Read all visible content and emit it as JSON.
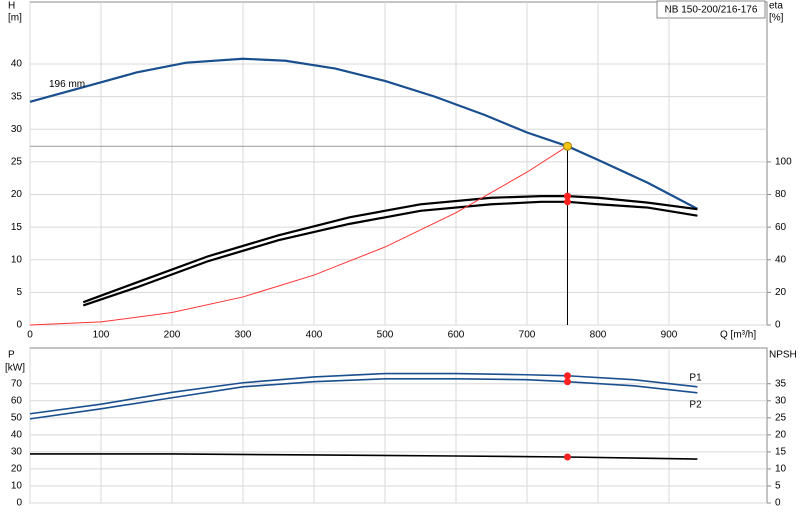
{
  "chart_data": [
    {
      "type": "line",
      "title": "NB 150-200/216-176",
      "xlabel": "Q [m³/h]",
      "ylabel": "H",
      "yunit": "[m]",
      "y2label": "eta",
      "y2unit": "[%]",
      "xlim": [
        0,
        1038
      ],
      "xticks": [
        0,
        100,
        200,
        300,
        400,
        500,
        600,
        700,
        800,
        900
      ],
      "ylim": [
        0,
        49.5
      ],
      "yticks": [
        0,
        5,
        10,
        15,
        20,
        25,
        30,
        35,
        40
      ],
      "y2lim": [
        0,
        198
      ],
      "y2ticks": [
        0,
        20,
        40,
        60,
        80,
        100
      ],
      "grid": true,
      "duty_point": {
        "x": 757,
        "y": 27.4,
        "color": "#f5c518"
      },
      "marker_color": "#ff2020",
      "series": [
        {
          "name": "196 mm",
          "color": "#1a4f8f",
          "x": [
            0,
            100,
            150,
            220,
            300,
            360,
            430,
            500,
            570,
            640,
            700,
            757,
            800,
            870,
            940
          ],
          "values": [
            34.2,
            37.2,
            38.7,
            40.2,
            40.8,
            40.5,
            39.3,
            37.4,
            35,
            32.2,
            29.5,
            27.4,
            25.3,
            21.8,
            17.8
          ]
        },
        {
          "color": "#000000",
          "axis": "y2",
          "x": [
            75,
            150,
            250,
            350,
            450,
            550,
            650,
            720,
            757,
            800,
            870,
            940
          ],
          "values": [
            14,
            26,
            42,
            55,
            66,
            74,
            78,
            79,
            79,
            78,
            75,
            71
          ]
        },
        {
          "color": "#000000",
          "axis": "y2",
          "x": [
            75,
            150,
            250,
            350,
            450,
            550,
            650,
            720,
            757,
            800,
            870,
            940
          ],
          "values": [
            12,
            23,
            39,
            52,
            62,
            70,
            74,
            75.5,
            75.5,
            74,
            72,
            67
          ]
        },
        {
          "color": "#ff3333",
          "x": [
            0,
            100,
            200,
            300,
            400,
            500,
            600,
            700,
            757
          ],
          "values": [
            0,
            0.48,
            1.91,
            4.3,
            7.65,
            11.95,
            17.21,
            23.43,
            27.4
          ]
        }
      ]
    },
    {
      "type": "line",
      "ylabel": "P",
      "yunit": "[kW]",
      "y2label": "NPSH",
      "xlim": [
        0,
        1038
      ],
      "ylim": [
        0,
        91
      ],
      "yticks": [
        0,
        10,
        20,
        30,
        40,
        50,
        60,
        70
      ],
      "y2lim": [
        0,
        45.5
      ],
      "y2ticks": [
        0,
        5,
        10,
        15,
        20,
        25,
        30,
        35
      ],
      "grid": true,
      "marker_color": "#ff2020",
      "series": [
        {
          "name": "P1",
          "color": "#1a4f8f",
          "x": [
            0,
            100,
            200,
            300,
            400,
            500,
            600,
            700,
            757,
            850,
            940
          ],
          "values": [
            52.4,
            58,
            65,
            70.6,
            74,
            76,
            76,
            75.3,
            74.7,
            72.4,
            68.2
          ]
        },
        {
          "name": "P2",
          "color": "#1a4f8f",
          "x": [
            0,
            100,
            200,
            300,
            400,
            500,
            600,
            700,
            757,
            850,
            940
          ],
          "values": [
            49.4,
            55.3,
            61.8,
            68.2,
            71.2,
            72.9,
            72.9,
            72.4,
            71.2,
            68.8,
            64.7
          ]
        },
        {
          "color": "#000000",
          "axis": "y2",
          "x": [
            0,
            200,
            400,
            600,
            757,
            940
          ],
          "values": [
            14.4,
            14.4,
            14.1,
            13.8,
            13.5,
            12.9
          ]
        }
      ]
    }
  ]
}
